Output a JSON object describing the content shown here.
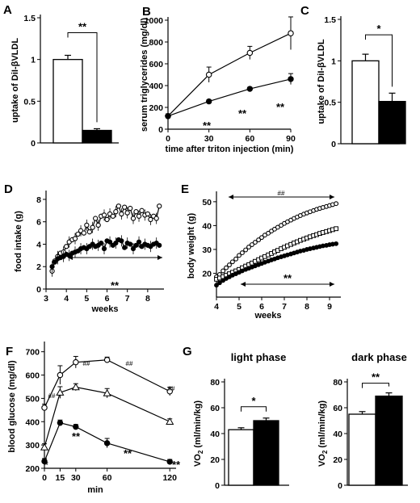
{
  "figure": {
    "panels": [
      {
        "id": "A",
        "letter": "A"
      },
      {
        "id": "B",
        "letter": "B"
      },
      {
        "id": "C",
        "letter": "C"
      },
      {
        "id": "D",
        "letter": "D"
      },
      {
        "id": "E",
        "letter": "E"
      },
      {
        "id": "F",
        "letter": "F"
      },
      {
        "id": "G",
        "letter": "G"
      }
    ]
  },
  "chart_data": [
    {
      "id": "A",
      "type": "bar",
      "ylabel": "uptake of DiI-βVLDL",
      "ylim": [
        0,
        1.5
      ],
      "yticks": [
        "0",
        "0.5",
        "1",
        "1.5"
      ],
      "categories": [
        "",
        ""
      ],
      "values": [
        1.0,
        0.15
      ],
      "errors": [
        0.05,
        0.02
      ],
      "bar_colors": [
        "#ffffff",
        "#000000"
      ],
      "significance": "**"
    },
    {
      "id": "B",
      "type": "line",
      "xlabel": "time after triton injection (min)",
      "ylabel": "serum triglycerides (mg/dl)",
      "xlim": [
        0,
        90
      ],
      "ylim": [
        0,
        1000
      ],
      "xticks": [
        "0",
        "30",
        "60",
        "90"
      ],
      "yticks": [
        "0",
        "200",
        "400",
        "600",
        "800",
        "1000"
      ],
      "x": [
        0,
        30,
        60,
        90
      ],
      "series": [
        {
          "marker": "open",
          "values": [
            120,
            500,
            700,
            880
          ],
          "errors": [
            20,
            70,
            60,
            150
          ]
        },
        {
          "marker": "filled",
          "values": [
            120,
            255,
            370,
            460
          ],
          "errors": [
            20,
            15,
            15,
            50
          ]
        }
      ],
      "annotations": [
        "**",
        "**",
        "**"
      ]
    },
    {
      "id": "C",
      "type": "bar",
      "ylabel": "uptake of DiI-βVLDL",
      "ylim": [
        0,
        1.5
      ],
      "yticks": [
        "0",
        "0.5",
        "1",
        "1.5"
      ],
      "categories": [
        "",
        ""
      ],
      "values": [
        1.0,
        0.51
      ],
      "errors": [
        0.08,
        0.1
      ],
      "bar_colors": [
        "#ffffff",
        "#000000"
      ],
      "significance": "*"
    },
    {
      "id": "D",
      "type": "line",
      "xlabel": "weeks",
      "ylabel": "food intake (g)",
      "xlim": [
        3,
        8.8
      ],
      "ylim": [
        0,
        8.5
      ],
      "xticks": [
        "3",
        "4",
        "5",
        "6",
        "7",
        "8"
      ],
      "yticks": [
        "0",
        "2",
        "4",
        "6",
        "8"
      ],
      "x": [
        3.3,
        3.43,
        3.57,
        3.71,
        3.86,
        4.0,
        4.14,
        4.29,
        4.43,
        4.57,
        4.71,
        4.86,
        5.0,
        5.14,
        5.29,
        5.43,
        5.57,
        5.71,
        5.86,
        6.0,
        6.14,
        6.29,
        6.43,
        6.57,
        6.71,
        6.86,
        7.0,
        7.14,
        7.29,
        7.43,
        7.57,
        7.71,
        7.86,
        8.0,
        8.14,
        8.29,
        8.43,
        8.57
      ],
      "series": [
        {
          "marker": "open",
          "values": [
            1.6,
            2.5,
            2.9,
            3.2,
            3.3,
            3.8,
            4.2,
            4.4,
            4.5,
            4.9,
            5.2,
            5.0,
            5.7,
            5.1,
            5.5,
            6.3,
            5.7,
            6.5,
            6.6,
            6.2,
            6.7,
            6.5,
            6.9,
            7.4,
            6.7,
            7.3,
            6.8,
            7.2,
            6.3,
            6.9,
            6.5,
            7.0,
            6.6,
            6.7,
            6.2,
            6.5,
            6.3,
            7.4
          ]
        },
        {
          "marker": "filled",
          "values": [
            2.0,
            2.4,
            2.7,
            2.8,
            2.9,
            3.1,
            3.0,
            3.2,
            3.3,
            3.4,
            3.6,
            3.7,
            3.6,
            3.8,
            4.0,
            3.8,
            3.9,
            4.1,
            3.6,
            4.3,
            4.2,
            3.9,
            4.1,
            4.4,
            4.3,
            3.7,
            4.1,
            4.0,
            3.6,
            3.9,
            4.2,
            3.8,
            4.0,
            3.9,
            3.8,
            4.0,
            4.1,
            3.9
          ]
        }
      ],
      "annotations": [
        "**"
      ]
    },
    {
      "id": "E",
      "type": "line",
      "xlabel": "weeks",
      "ylabel": "body weight (g)",
      "xlim": [
        4,
        9.5
      ],
      "ylim": [
        10,
        53
      ],
      "xticks": [
        "4",
        "5",
        "6",
        "7",
        "8",
        "9"
      ],
      "yticks": [
        "20",
        "30",
        "40",
        "50"
      ],
      "x": [
        4.0,
        4.14,
        4.29,
        4.43,
        4.57,
        4.71,
        4.86,
        5.0,
        5.14,
        5.29,
        5.43,
        5.57,
        5.71,
        5.86,
        6.0,
        6.14,
        6.29,
        6.43,
        6.57,
        6.71,
        6.86,
        7.0,
        7.14,
        7.29,
        7.43,
        7.57,
        7.71,
        7.86,
        8.0,
        8.14,
        8.29,
        8.43,
        8.57,
        8.71,
        8.86,
        9.0,
        9.14,
        9.29
      ],
      "series": [
        {
          "marker": "open-circle",
          "values": [
            18.5,
            19.5,
            21.0,
            22.3,
            23.5,
            24.8,
            26.0,
            27.5,
            28.6,
            29.8,
            31.0,
            32.0,
            33.0,
            34.0,
            35.0,
            36.0,
            36.8,
            37.7,
            38.5,
            39.3,
            40.1,
            40.9,
            41.6,
            42.3,
            43.0,
            43.6,
            44.2,
            44.8,
            45.3,
            45.8,
            46.3,
            46.8,
            47.2,
            47.6,
            48.0,
            48.4,
            48.8,
            49.2
          ]
        },
        {
          "marker": "open-square",
          "values": [
            17.5,
            18.0,
            18.6,
            19.2,
            19.8,
            20.4,
            21.0,
            21.6,
            22.3,
            23.0,
            23.6,
            24.3,
            25.0,
            25.7,
            26.4,
            27.0,
            27.7,
            28.3,
            29.0,
            29.6,
            30.3,
            30.9,
            31.5,
            32.1,
            32.7,
            33.2,
            33.8,
            34.3,
            34.8,
            35.3,
            35.8,
            36.2,
            36.7,
            37.1,
            37.5,
            37.9,
            38.3,
            38.7
          ]
        },
        {
          "marker": "filled",
          "values": [
            15.0,
            16.0,
            17.0,
            17.8,
            18.5,
            19.2,
            19.8,
            20.4,
            21.0,
            21.6,
            22.1,
            22.6,
            23.1,
            23.6,
            24.1,
            24.6,
            25.1,
            25.6,
            26.0,
            26.5,
            26.9,
            27.3,
            27.7,
            28.1,
            28.5,
            28.9,
            29.3,
            29.6,
            30.0,
            30.3,
            30.6,
            30.9,
            31.2,
            31.5,
            31.7,
            32.0,
            32.2,
            32.4
          ]
        }
      ],
      "annotations": [
        "##",
        "**"
      ]
    },
    {
      "id": "F",
      "type": "line",
      "xlabel": "min",
      "ylabel": "blood glucose (mg/dl)",
      "xlim": [
        0,
        126
      ],
      "ylim": [
        200,
        730
      ],
      "xticks": [
        "0",
        "15",
        "30",
        "60",
        "120"
      ],
      "yticks": [
        "200",
        "300",
        "400",
        "500",
        "600",
        "700"
      ],
      "x": [
        0,
        15,
        30,
        60,
        120
      ],
      "series": [
        {
          "marker": "open-circle",
          "values": [
            460,
            600,
            655,
            665,
            530
          ],
          "errors": [
            15,
            40,
            25,
            12,
            18
          ]
        },
        {
          "marker": "open-triangle",
          "values": [
            290,
            525,
            548,
            522,
            400
          ],
          "errors": [
            15,
            25,
            15,
            20,
            12
          ]
        },
        {
          "marker": "filled",
          "values": [
            230,
            395,
            378,
            308,
            228
          ],
          "errors": [
            12,
            12,
            10,
            20,
            10
          ]
        }
      ],
      "annotations": [
        "##",
        "##",
        "##",
        "##",
        "*",
        "**",
        "**",
        "**"
      ]
    },
    {
      "id": "G1",
      "type": "bar",
      "title": "light phase",
      "ylabel": "VO2 (ml/min/kg)",
      "ylim": [
        0,
        80
      ],
      "yticks": [
        "0",
        "20",
        "40",
        "60",
        "80"
      ],
      "categories": [
        "",
        ""
      ],
      "values": [
        43,
        50
      ],
      "errors": [
        1.5,
        2.0
      ],
      "bar_colors": [
        "#ffffff",
        "#000000"
      ],
      "significance": "*"
    },
    {
      "id": "G2",
      "type": "bar",
      "title": "dark phase",
      "ylabel": "VO2 (ml/min/kg)",
      "ylim": [
        0,
        80
      ],
      "yticks": [
        "0",
        "20",
        "40",
        "60",
        "80"
      ],
      "categories": [
        "",
        ""
      ],
      "values": [
        55,
        69
      ],
      "errors": [
        2.0,
        2.5
      ],
      "bar_colors": [
        "#ffffff",
        "#000000"
      ],
      "significance": "**"
    }
  ]
}
